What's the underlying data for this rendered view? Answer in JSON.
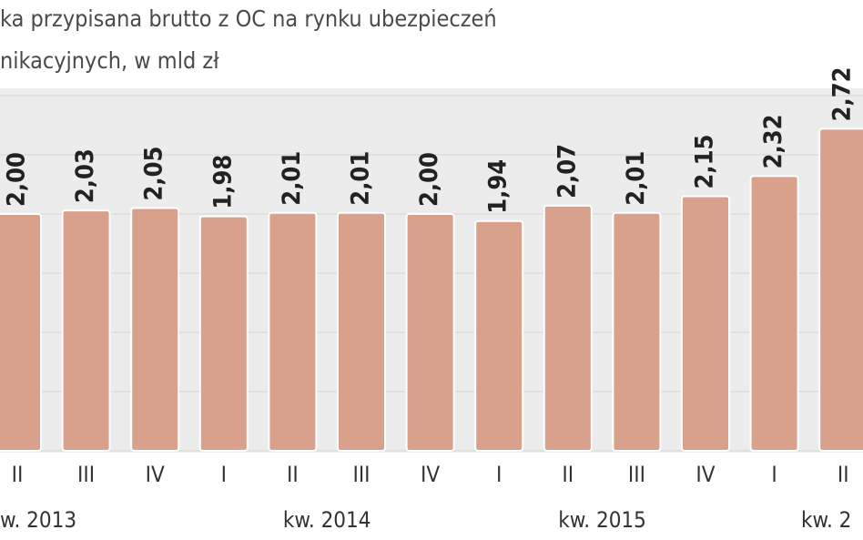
{
  "chart_data": {
    "type": "bar",
    "title": "ka przypisana brutto z OC na rynku ubezpieczeń",
    "subtitle": "nikacyjnych, w mld zł",
    "categories": [
      "II",
      "III",
      "IV",
      "I",
      "II",
      "III",
      "IV",
      "I",
      "II",
      "III",
      "IV",
      "I",
      "II"
    ],
    "values": [
      2.0,
      2.03,
      2.05,
      1.98,
      2.01,
      2.01,
      2.0,
      1.94,
      2.07,
      2.01,
      2.15,
      2.32,
      2.72
    ],
    "value_labels": [
      "2,00",
      "2,03",
      "2,05",
      "1,98",
      "2,01",
      "2,01",
      "2,00",
      "1,94",
      "2,07",
      "2,01",
      "2,15",
      "2,32",
      "2,72"
    ],
    "groups": [
      {
        "label": "w. 2013",
        "span": [
          0,
          2
        ]
      },
      {
        "label": "kw. 2014",
        "span": [
          3,
          6
        ]
      },
      {
        "label": "kw. 2015",
        "span": [
          7,
          10
        ]
      },
      {
        "label": "kw. 2",
        "span": [
          11,
          12
        ]
      }
    ],
    "color": "#d9a08b",
    "ylim": [
      0,
      3
    ],
    "yticks": [
      0,
      0.5,
      1,
      1.5,
      2,
      2.5,
      3
    ],
    "grid": true
  }
}
